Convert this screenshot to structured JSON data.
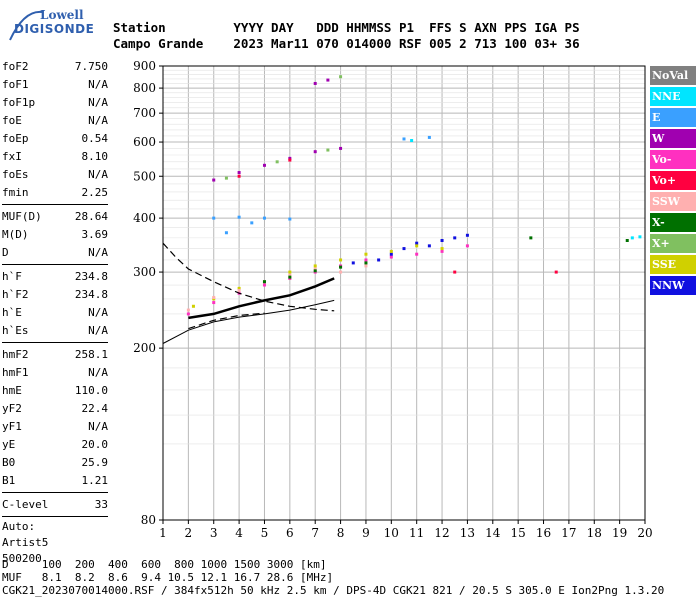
{
  "logo": {
    "line1": "Lowell",
    "line2": "DIGISONDE"
  },
  "header": {
    "row1": "Station         YYYY DAY   DDD HHMMSS P1  FFS S AXN PPS IGA PS",
    "row2": "Campo Grande    2023 Mar11 070 014000 RSF 005 2 713 100 03+ 36"
  },
  "params": {
    "group1": [
      {
        "k": "foF2",
        "v": "7.750"
      },
      {
        "k": "foF1",
        "v": "N/A"
      },
      {
        "k": "foF1p",
        "v": "N/A"
      },
      {
        "k": "foE",
        "v": "N/A"
      },
      {
        "k": "foEp",
        "v": "0.54"
      },
      {
        "k": "fxI",
        "v": "8.10"
      },
      {
        "k": "foEs",
        "v": "N/A"
      },
      {
        "k": "fmin",
        "v": "2.25"
      }
    ],
    "group2": [
      {
        "k": "MUF(D)",
        "v": "28.64"
      },
      {
        "k": "M(D)",
        "v": "3.69"
      },
      {
        "k": "D",
        "v": "N/A"
      }
    ],
    "group3": [
      {
        "k": "h`F",
        "v": "234.8"
      },
      {
        "k": "h`F2",
        "v": "234.8"
      },
      {
        "k": "h`E",
        "v": "N/A"
      },
      {
        "k": "h`Es",
        "v": "N/A"
      }
    ],
    "group4": [
      {
        "k": "hmF2",
        "v": "258.1"
      },
      {
        "k": "hmF1",
        "v": "N/A"
      },
      {
        "k": "hmE",
        "v": "110.0"
      },
      {
        "k": "yF2",
        "v": "22.4"
      },
      {
        "k": "yF1",
        "v": "N/A"
      },
      {
        "k": "yE",
        "v": "20.0"
      },
      {
        "k": "B0",
        "v": "25.9"
      },
      {
        "k": "B1",
        "v": "1.21"
      }
    ],
    "group5": [
      {
        "k": "C-level",
        "v": "33"
      }
    ],
    "auto": [
      "Auto:",
      "Artist5",
      "500200"
    ]
  },
  "legend": [
    {
      "label": "NoVal",
      "color": "#808080"
    },
    {
      "label": "NNE",
      "color": "#00e5ff"
    },
    {
      "label": "E",
      "color": "#3aa0ff"
    },
    {
      "label": "W",
      "color": "#a000b0"
    },
    {
      "label": "Vo-",
      "color": "#ff30c0"
    },
    {
      "label": "Vo+",
      "color": "#ff0040"
    },
    {
      "label": "SSW",
      "color": "#ffb0b0"
    },
    {
      "label": "X-",
      "color": "#007000"
    },
    {
      "label": "X+",
      "color": "#80c060"
    },
    {
      "label": "SSE",
      "color": "#d0d000"
    },
    {
      "label": "NNW",
      "color": "#1010e0"
    }
  ],
  "footer": {
    "row1": "D     100  200  400  600  800 1000 1500 3000 [km]",
    "row2": "MUF   8.1  8.2  8.6  9.4 10.5 12.1 16.7 28.6 [MHz]",
    "row3": "CGK21_2023070014000.RSF / 384fx512h 50 kHz 2.5 km / DPS-4D CGK21 821 / 20.5 S 305.0 E Ion2Png 1.3.20"
  },
  "chart_data": {
    "type": "scatter",
    "title": "",
    "xlabel": "",
    "ylabel": "",
    "xlim": [
      1,
      20
    ],
    "ylim": [
      80,
      900
    ],
    "yscale": "log",
    "x_ticks": [
      1,
      2,
      3,
      4,
      5,
      6,
      7,
      8,
      9,
      10,
      11,
      12,
      13,
      14,
      15,
      16,
      17,
      18,
      19,
      20
    ],
    "y_ticks": [
      80,
      200,
      300,
      400,
      500,
      600,
      700,
      800,
      900
    ],
    "grid": true,
    "series": [
      {
        "color": "#ff30c0",
        "points": [
          [
            2,
            240
          ],
          [
            3,
            255
          ],
          [
            4,
            268
          ],
          [
            5,
            280
          ],
          [
            6,
            290
          ],
          [
            7,
            300
          ],
          [
            8,
            310
          ],
          [
            9,
            320
          ],
          [
            10,
            325
          ],
          [
            11,
            330
          ],
          [
            12,
            335
          ],
          [
            13,
            345
          ]
        ]
      },
      {
        "color": "#1010e0",
        "points": [
          [
            8.5,
            315
          ],
          [
            9.5,
            320
          ],
          [
            10,
            330
          ],
          [
            10.5,
            340
          ],
          [
            11,
            350
          ],
          [
            11.5,
            345
          ],
          [
            12,
            355
          ],
          [
            12.5,
            360
          ],
          [
            13,
            365
          ]
        ]
      },
      {
        "color": "#d0d000",
        "points": [
          [
            2.2,
            250
          ],
          [
            3,
            260
          ],
          [
            4,
            275
          ],
          [
            5,
            285
          ],
          [
            6,
            300
          ],
          [
            7,
            310
          ],
          [
            8,
            320
          ],
          [
            9,
            330
          ],
          [
            10,
            335
          ],
          [
            11,
            345
          ],
          [
            12,
            340
          ]
        ]
      },
      {
        "color": "#ffb0b0",
        "points": [
          [
            2,
            245
          ],
          [
            3,
            262
          ],
          [
            4,
            272
          ],
          [
            5,
            285
          ],
          [
            6,
            295
          ],
          [
            7,
            305
          ],
          [
            8,
            300
          ],
          [
            9,
            310
          ]
        ]
      },
      {
        "color": "#3aa0ff",
        "points": [
          [
            3,
            400
          ],
          [
            4,
            402
          ],
          [
            5,
            400
          ],
          [
            6,
            398
          ],
          [
            3.5,
            370
          ],
          [
            4.5,
            390
          ],
          [
            10.5,
            610
          ],
          [
            11.5,
            615
          ]
        ]
      },
      {
        "color": "#007000",
        "points": [
          [
            5,
            285
          ],
          [
            6,
            292
          ],
          [
            7,
            302
          ],
          [
            8,
            308
          ],
          [
            9,
            315
          ],
          [
            15.5,
            360
          ],
          [
            19.3,
            355
          ]
        ]
      },
      {
        "color": "#a000b0",
        "points": [
          [
            3,
            490
          ],
          [
            4,
            510
          ],
          [
            5,
            530
          ],
          [
            6,
            550
          ],
          [
            7,
            570
          ],
          [
            8,
            580
          ],
          [
            7,
            820
          ],
          [
            7.5,
            835
          ]
        ]
      },
      {
        "color": "#80c060",
        "points": [
          [
            3.5,
            495
          ],
          [
            5.5,
            540
          ],
          [
            7.5,
            575
          ],
          [
            8,
            850
          ]
        ]
      },
      {
        "color": "#00e5ff",
        "points": [
          [
            10.8,
            605
          ],
          [
            19.5,
            360
          ],
          [
            19.8,
            362
          ]
        ]
      },
      {
        "color": "#ff0040",
        "points": [
          [
            4,
            500
          ],
          [
            6,
            545
          ],
          [
            16.5,
            300
          ],
          [
            12.5,
            300
          ]
        ]
      }
    ],
    "traces": [
      {
        "name": "h'F trace",
        "style": "solid-thick",
        "points": [
          [
            2,
            235
          ],
          [
            3,
            240
          ],
          [
            4,
            250
          ],
          [
            5,
            258
          ],
          [
            6,
            265
          ],
          [
            7,
            278
          ],
          [
            7.75,
            290
          ]
        ]
      },
      {
        "name": "model lower",
        "style": "solid-thin",
        "points": [
          [
            1,
            205
          ],
          [
            2,
            220
          ],
          [
            3,
            230
          ],
          [
            4,
            236
          ],
          [
            5,
            240
          ],
          [
            6,
            245
          ],
          [
            7,
            252
          ],
          [
            7.75,
            258
          ]
        ]
      },
      {
        "name": "profile",
        "style": "dashed",
        "points": [
          [
            1,
            350
          ],
          [
            1.5,
            325
          ],
          [
            2,
            305
          ],
          [
            3,
            285
          ],
          [
            4,
            268
          ],
          [
            5,
            257
          ],
          [
            6,
            250
          ],
          [
            7,
            246
          ],
          [
            7.75,
            244
          ]
        ]
      },
      {
        "name": "profile lower",
        "style": "dashed",
        "points": [
          [
            2,
            222
          ],
          [
            3,
            232
          ],
          [
            4,
            238
          ],
          [
            5,
            241
          ]
        ]
      }
    ]
  }
}
